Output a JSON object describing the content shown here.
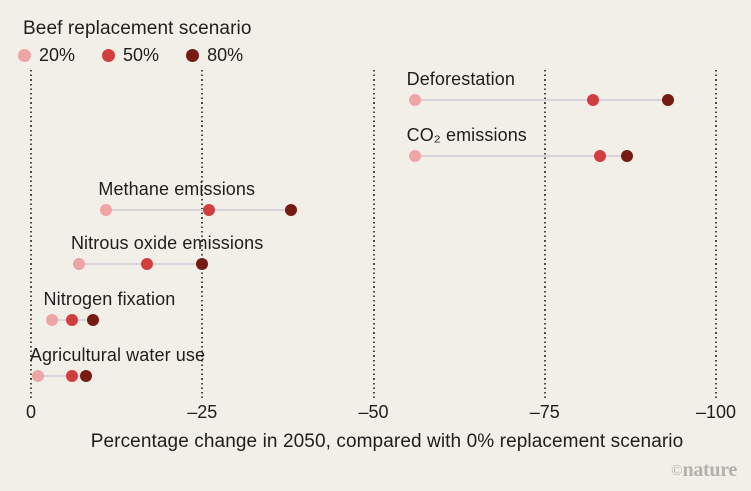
{
  "title": "Beef replacement scenario",
  "colors": {
    "background": "#f2efe8",
    "text": "#1e1e1e",
    "gridline": "#4a4a46",
    "connector": "#d6d3da",
    "watermark": "#b3b1ab",
    "scenario_20": "#eea5a6",
    "scenario_50": "#d13e3e",
    "scenario_80": "#761b12"
  },
  "legend": {
    "items": [
      {
        "label": "20%",
        "color": "#eea5a6"
      },
      {
        "label": "50%",
        "color": "#d13e3e"
      },
      {
        "label": "80%",
        "color": "#761b12"
      }
    ]
  },
  "watermark": {
    "symbol": "©",
    "name": "nature"
  },
  "chart_data": {
    "type": "scatter",
    "subtype": "dumbbell-dot-plot",
    "title": "Beef replacement scenario",
    "categories": [
      "Deforestation",
      "CO₂ emissions",
      "Methane emissions",
      "Nitrous oxide emissions",
      "Nitrogen fixation",
      "Agricultural water use"
    ],
    "series": [
      {
        "name": "20%",
        "color": "#eea5a6",
        "values": [
          -56,
          -56,
          -11,
          -7,
          -3,
          -1
        ]
      },
      {
        "name": "50%",
        "color": "#d13e3e",
        "values": [
          -82,
          -83,
          -26,
          -17,
          -6,
          -6
        ]
      },
      {
        "name": "80%",
        "color": "#761b12",
        "values": [
          -93,
          -87,
          -38,
          -25,
          -9,
          -8
        ]
      }
    ],
    "xlabel": "Percentage change in 2050, compared with 0% replacement scenario",
    "xlim": [
      0,
      -100
    ],
    "x_ticks": [
      {
        "label": "0",
        "value": 0
      },
      {
        "label": "–25",
        "value": -25
      },
      {
        "label": "–50",
        "value": -50
      },
      {
        "label": "–75",
        "value": -75
      },
      {
        "label": "–100",
        "value": -100
      }
    ],
    "grid": "vertical-dotted",
    "legend_position": "top-left",
    "legend_title": "Beef replacement scenario"
  }
}
